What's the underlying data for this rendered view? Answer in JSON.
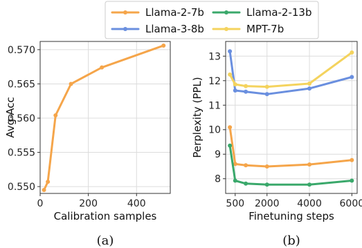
{
  "legend": {
    "entries": [
      {
        "name": "Llama-2-7b",
        "color": "#f5a54a"
      },
      {
        "name": "Llama-3-8b",
        "color": "#6a8fdf"
      },
      {
        "name": "Llama-2-13b",
        "color": "#3aa86b"
      },
      {
        "name": "MPT-7b",
        "color": "#f4d35e"
      }
    ]
  },
  "chart_data": [
    {
      "type": "line",
      "panel_label": "(a)",
      "xlabel": "Calibration samples",
      "ylabel": "Avg-Acc",
      "xlim": [
        0,
        540
      ],
      "ylim": [
        0.549,
        0.5712
      ],
      "xticks": [
        0,
        200,
        400
      ],
      "xtick_labels": [
        "0",
        "200",
        "400"
      ],
      "yticks": [
        0.55,
        0.555,
        0.56,
        0.565,
        0.57
      ],
      "ytick_labels": [
        "0.550",
        "0.555",
        "0.560",
        "0.565",
        "0.570"
      ],
      "grid": true,
      "series": [
        {
          "name": "Llama-2-7b",
          "color": "#f5a54a",
          "x": [
            16,
            32,
            64,
            128,
            256,
            512
          ],
          "y": [
            0.5495,
            0.5507,
            0.5604,
            0.565,
            0.5674,
            0.5706
          ]
        }
      ]
    },
    {
      "type": "line",
      "panel_label": "(b)",
      "xlabel": "Finetuning steps",
      "ylabel": "Perplexity (PPL)",
      "xlim": [
        50,
        6250
      ],
      "ylim": [
        7.4,
        13.6
      ],
      "xticks": [
        500,
        2000,
        4000,
        6000
      ],
      "xtick_labels": [
        "500",
        "2000",
        "4000",
        "6000"
      ],
      "yticks": [
        8,
        9,
        10,
        11,
        12,
        13
      ],
      "ytick_labels": [
        "8",
        "9",
        "10",
        "11",
        "12",
        "13"
      ],
      "grid": true,
      "series": [
        {
          "name": "Llama-2-7b",
          "color": "#f5a54a",
          "x": [
            250,
            500,
            1000,
            2000,
            4000,
            6000
          ],
          "y": [
            10.1,
            8.6,
            8.55,
            8.5,
            8.58,
            8.76
          ]
        },
        {
          "name": "Llama-3-8b",
          "color": "#6a8fdf",
          "x": [
            250,
            500,
            1000,
            2000,
            4000,
            6000
          ],
          "y": [
            13.2,
            11.6,
            11.55,
            11.45,
            11.68,
            12.15
          ]
        },
        {
          "name": "Llama-2-13b",
          "color": "#3aa86b",
          "x": [
            250,
            500,
            1000,
            2000,
            4000,
            6000
          ],
          "y": [
            9.35,
            7.92,
            7.8,
            7.76,
            7.76,
            7.92
          ]
        },
        {
          "name": "MPT-7b",
          "color": "#f4d35e",
          "x": [
            250,
            500,
            1000,
            2000,
            4000,
            6000
          ],
          "y": [
            12.25,
            11.85,
            11.78,
            11.75,
            11.88,
            13.15
          ]
        }
      ]
    }
  ]
}
